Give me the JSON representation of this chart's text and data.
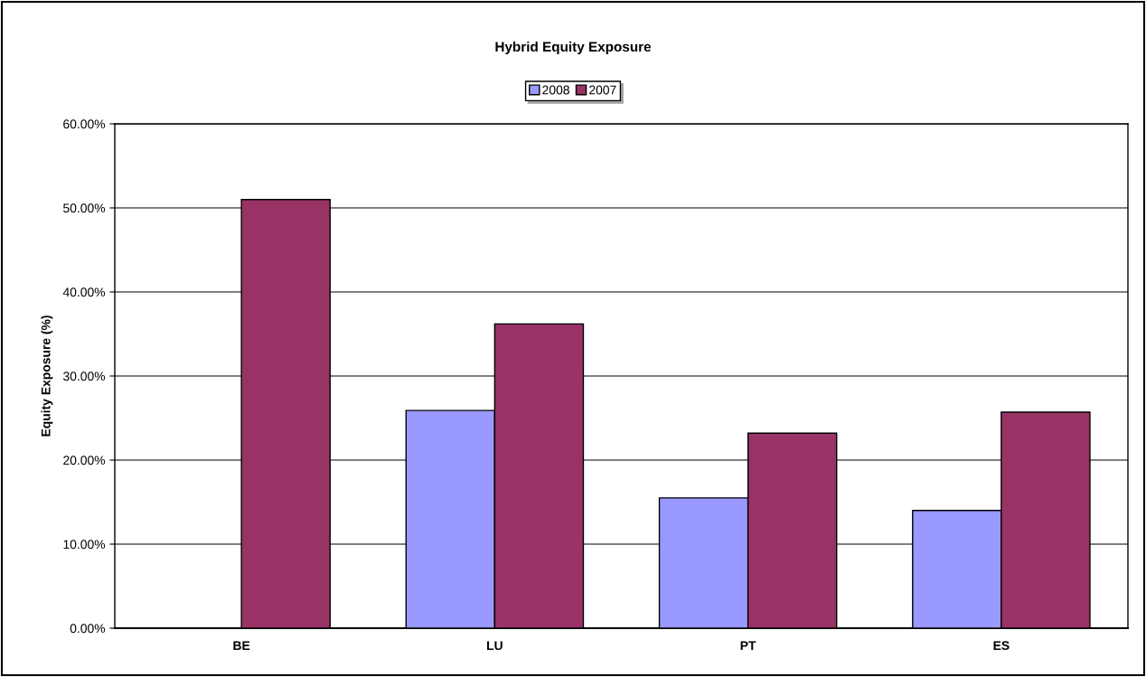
{
  "chart_data": {
    "type": "bar",
    "title": "Hybrid Equity Exposure",
    "ylabel": "Equity Exposure (%)",
    "categories": [
      "BE",
      "LU",
      "PT",
      "ES"
    ],
    "series": [
      {
        "name": "2008",
        "color": "#9999ff",
        "values": [
          null,
          25.9,
          15.5,
          14.0
        ]
      },
      {
        "name": "2007",
        "color": "#993366",
        "values": [
          51.0,
          36.2,
          23.2,
          25.7
        ]
      }
    ],
    "ylim": [
      0,
      60
    ],
    "yticks": [
      {
        "value": 0,
        "label": "0.00%"
      },
      {
        "value": 10,
        "label": "10.00%"
      },
      {
        "value": 20,
        "label": "20.00%"
      },
      {
        "value": 30,
        "label": "30.00%"
      },
      {
        "value": 40,
        "label": "40.00%"
      },
      {
        "value": 50,
        "label": "50.00%"
      },
      {
        "value": 60,
        "label": "60.00%"
      }
    ],
    "grid": "y",
    "legend": "top"
  }
}
